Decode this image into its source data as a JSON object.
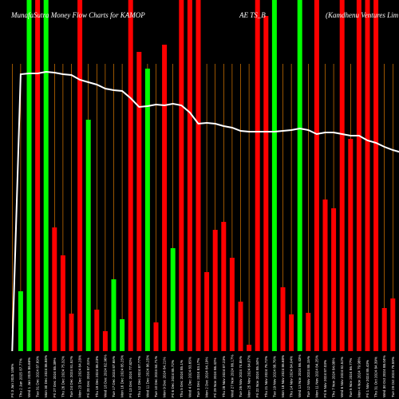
{
  "chart_data": {
    "type": "bar",
    "title_parts": [
      "MunafaSutra  Money Flow  Charts for KAMOP",
      "AE    TS_B",
      "(Kamdhenu   Ventures Lim"
    ],
    "ylim": [
      0,
      440
    ],
    "colors": {
      "green": "#00ff00",
      "red": "#ff0000",
      "grid": "#ff8c00",
      "line": "#ffffff",
      "background": "#000000"
    },
    "x": [
      "Fri 3 Jan 2025 185%",
      "Thu 2 Jan 2025 87.77%",
      "Wed 1 Jan 2025 86.66%",
      "Tue 31 Dec 2024 87.69%",
      "Mon 30 Dec 2024 86.85%",
      "Fri 27 Dec 2024 85.39%",
      "Thu 26 Dec 2024 75.32%",
      "Tue 24 Dec 2024 81.52%",
      "Mon 23 Dec 2024 84.28%",
      "Fri 20 Dec 2024 87.31%",
      "Thu 19 Dec 2024 86.23%",
      "Wed 18 Dec 2024 82.96%",
      "Tue 17 Dec 2024 87.65%",
      "Mon 16 Dec 2024 85.25%",
      "Fri 13 Dec 2024 77.82%",
      "Thu 12 Dec 2024 87.77%",
      "Wed 11 Dec 2024 86.25%",
      "Tue 10 Dec 2024 84.71%",
      "Mon 9 Dec 2024 84.21%",
      "Fri 6 Dec 2024 85.72%",
      "Thu 5 Dec 2024 85.1%",
      "Wed 4 Dec 2024 83.65%",
      "Tue 3 Dec 2024 83.17%",
      "Mon 2 Dec 2024 84.19%",
      "Fri 29 Nov 2024 86.42%",
      "Thu 28 Nov 2024 87.23%",
      "Wed 27 Nov 2024 86.17%",
      "Tue 26 Nov 2024 74.85%",
      "Mon 25 Nov 2024 84.07%",
      "Fri 22 Nov 2024 85.34%",
      "Thu 21 Nov 2024 76.72%",
      "Tue 19 Nov 2024 88.76%",
      "Mon 18 Nov 2024 86.68%",
      "Thu 14 Nov 2024 84.04%",
      "Wed 13 Nov 2024 86.43%",
      "Tue 12 Nov 2024 85.15%",
      "Mon 11 Nov 2024 84.25%",
      "Fri 8 Nov 2024 87.03%",
      "Thu 7 Nov 2024 84.08%",
      "Wed 6 Nov 2024 82.52%",
      "Tue 5 Nov 2024 86.77%",
      "Mon 4 Nov 2024 79.98%",
      "Fri 1 Nov 2024 85.43%",
      "Thu 31 Oct 2024 84.39%",
      "Wed 30 Oct 2024 88.04%",
      "Tue 29 Oct 2024 79.59%",
      "Mon 28 Oct 2024 84.5%"
    ],
    "series": [
      {
        "colors": [
          "green",
          "green",
          "green",
          "red",
          "green",
          "red",
          "red",
          "red",
          "red",
          "green",
          "red",
          "red",
          "green",
          "green",
          "red",
          "red",
          "green",
          "red",
          "red",
          "green",
          "red",
          "red",
          "red",
          "red",
          "red",
          "red",
          "red",
          "red",
          "red",
          "red",
          "red",
          "green",
          "red",
          "red",
          "green",
          "red",
          "red",
          "red",
          "red",
          "red",
          "red",
          "red",
          "red",
          "red",
          "red",
          "red",
          "red"
        ],
        "values": [
          0,
          75,
          440,
          440,
          440,
          155,
          120,
          47,
          440,
          290,
          52,
          25,
          90,
          40,
          440,
          375,
          354,
          36,
          384,
          129,
          440,
          440,
          440,
          99,
          152,
          162,
          117,
          62,
          8,
          440,
          420,
          440,
          80,
          46,
          440,
          48,
          440,
          190,
          179,
          440,
          266,
          440,
          440,
          440,
          54,
          66,
          0
        ]
      },
      {
        "type": "line",
        "values": [
          0,
          347,
          348,
          348,
          350,
          349,
          347,
          346,
          340,
          337,
          334,
          329,
          327,
          326,
          317,
          306,
          307,
          309,
          308,
          310,
          308,
          299,
          285,
          286,
          285,
          282,
          280,
          276,
          275,
          275,
          275,
          275,
          276,
          277,
          279,
          277,
          272,
          274,
          274,
          272,
          270,
          270,
          264,
          261,
          256,
          252,
          249
        ]
      }
    ]
  }
}
